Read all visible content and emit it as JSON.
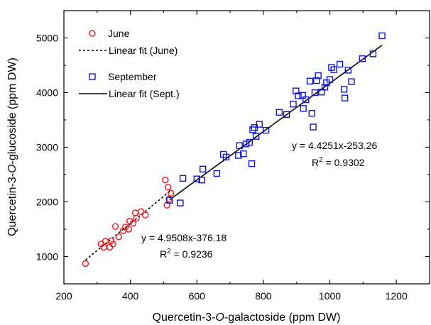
{
  "chart_data": {
    "type": "scatter",
    "xlabel": "Quercetin-3-O-galactoside (ppm DW)",
    "ylabel": "Quercetin-3-O-glucoside (ppm DW)",
    "xlim": [
      200,
      1300
    ],
    "ylim": [
      500,
      5500
    ],
    "x_ticks": [
      200,
      400,
      600,
      800,
      1000,
      1200
    ],
    "y_ticks": [
      1000,
      2000,
      3000,
      4000,
      5000
    ],
    "legend_position": "top-left",
    "series": [
      {
        "name": "June",
        "marker": "circle",
        "color": "#e8141c",
        "points": [
          [
            265,
            870
          ],
          [
            312,
            1230
          ],
          [
            320,
            1170
          ],
          [
            325,
            1280
          ],
          [
            338,
            1170
          ],
          [
            342,
            1290
          ],
          [
            348,
            1230
          ],
          [
            355,
            1550
          ],
          [
            365,
            1360
          ],
          [
            378,
            1470
          ],
          [
            385,
            1540
          ],
          [
            395,
            1500
          ],
          [
            398,
            1650
          ],
          [
            408,
            1610
          ],
          [
            415,
            1800
          ],
          [
            418,
            1700
          ],
          [
            432,
            1820
          ],
          [
            445,
            1760
          ],
          [
            505,
            2400
          ],
          [
            510,
            1940
          ],
          [
            513,
            2270
          ],
          [
            516,
            2050
          ],
          [
            522,
            2160
          ]
        ]
      },
      {
        "name": "September",
        "marker": "square",
        "color": "#1016c8",
        "points": [
          [
            518,
            2030
          ],
          [
            550,
            1980
          ],
          [
            558,
            2430
          ],
          [
            600,
            2420
          ],
          [
            615,
            2400
          ],
          [
            618,
            2600
          ],
          [
            660,
            2520
          ],
          [
            680,
            2870
          ],
          [
            688,
            2820
          ],
          [
            725,
            2850
          ],
          [
            728,
            3030
          ],
          [
            740,
            2880
          ],
          [
            748,
            3060
          ],
          [
            758,
            3090
          ],
          [
            765,
            2700
          ],
          [
            768,
            3320
          ],
          [
            773,
            3360
          ],
          [
            778,
            3200
          ],
          [
            788,
            3420
          ],
          [
            808,
            3310
          ],
          [
            848,
            3640
          ],
          [
            870,
            3600
          ],
          [
            890,
            3790
          ],
          [
            898,
            4030
          ],
          [
            905,
            3940
          ],
          [
            918,
            3950
          ],
          [
            920,
            3710
          ],
          [
            928,
            3870
          ],
          [
            940,
            4210
          ],
          [
            946,
            3620
          ],
          [
            950,
            3370
          ],
          [
            955,
            4000
          ],
          [
            960,
            4220
          ],
          [
            965,
            4310
          ],
          [
            975,
            4010
          ],
          [
            985,
            4100
          ],
          [
            990,
            4180
          ],
          [
            1000,
            4240
          ],
          [
            1005,
            4460
          ],
          [
            1012,
            4420
          ],
          [
            1030,
            4520
          ],
          [
            1043,
            4060
          ],
          [
            1045,
            3900
          ],
          [
            1055,
            4410
          ],
          [
            1065,
            4200
          ],
          [
            1098,
            4620
          ],
          [
            1130,
            4710
          ],
          [
            1157,
            5040
          ]
        ]
      }
    ],
    "fits": [
      {
        "name": "Linear fit (June)",
        "style": "dashed",
        "slope": 4.9508,
        "intercept": -376.18,
        "x_range": [
          265,
          522
        ],
        "equation": "y = 4.9508x-376.18",
        "r2_label": "R",
        "r2_sup": "2",
        "r2_value": " = 0.9236"
      },
      {
        "name": "Linear fit (Sept.)",
        "style": "solid",
        "slope": 4.4251,
        "intercept": -253.26,
        "x_range": [
          518,
          1157
        ],
        "equation": "y = 4.4251x-253.26",
        "r2_label": "R",
        "r2_sup": "2",
        "r2_value": " = 0.9302"
      }
    ]
  }
}
